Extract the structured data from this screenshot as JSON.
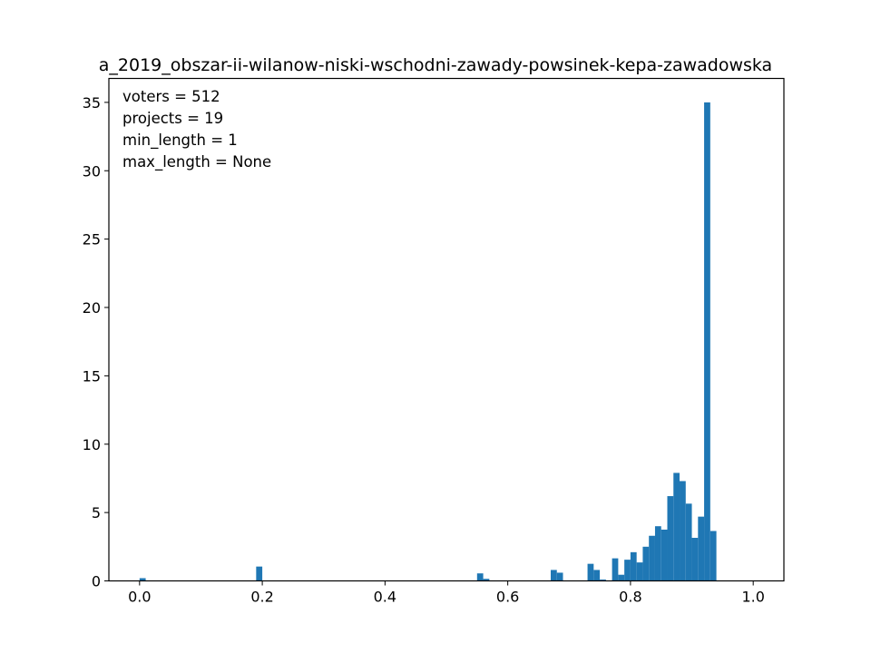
{
  "chart_data": {
    "type": "bar",
    "title": "a_2019_obszar-ii-wilanow-niski-wschodni-zawady-powsinek-kepa-zawadowska",
    "xlabel": "",
    "ylabel": "",
    "xlim": [
      -0.05,
      1.05
    ],
    "ylim": [
      0,
      36.75
    ],
    "x_ticks": [
      0.0,
      0.2,
      0.4,
      0.6,
      0.8,
      1.0
    ],
    "x_tick_labels": [
      "0.0",
      "0.2",
      "0.4",
      "0.6",
      "0.8",
      "1.0"
    ],
    "y_ticks": [
      0,
      5,
      10,
      15,
      20,
      25,
      30,
      35
    ],
    "y_tick_labels": [
      "0",
      "5",
      "10",
      "15",
      "20",
      "25",
      "30",
      "35"
    ],
    "bar_width": 0.01,
    "color": "#1f77b4",
    "grid": false,
    "annotations": [
      "voters = 512",
      "projects = 19",
      "min_length = 1",
      "max_length = None"
    ],
    "bars": [
      {
        "x": 0.005,
        "y": 0.2
      },
      {
        "x": 0.195,
        "y": 1.05
      },
      {
        "x": 0.555,
        "y": 0.55
      },
      {
        "x": 0.565,
        "y": 0.15
      },
      {
        "x": 0.675,
        "y": 0.8
      },
      {
        "x": 0.685,
        "y": 0.6
      },
      {
        "x": 0.735,
        "y": 1.25
      },
      {
        "x": 0.745,
        "y": 0.8
      },
      {
        "x": 0.755,
        "y": 0.1
      },
      {
        "x": 0.775,
        "y": 1.65
      },
      {
        "x": 0.785,
        "y": 0.45
      },
      {
        "x": 0.795,
        "y": 1.55
      },
      {
        "x": 0.805,
        "y": 2.1
      },
      {
        "x": 0.815,
        "y": 1.35
      },
      {
        "x": 0.825,
        "y": 2.5
      },
      {
        "x": 0.835,
        "y": 3.3
      },
      {
        "x": 0.845,
        "y": 4.0
      },
      {
        "x": 0.855,
        "y": 3.75
      },
      {
        "x": 0.865,
        "y": 6.2
      },
      {
        "x": 0.875,
        "y": 7.9
      },
      {
        "x": 0.885,
        "y": 7.3
      },
      {
        "x": 0.895,
        "y": 5.65
      },
      {
        "x": 0.905,
        "y": 3.15
      },
      {
        "x": 0.915,
        "y": 4.7
      },
      {
        "x": 0.925,
        "y": 35.0
      },
      {
        "x": 0.935,
        "y": 3.65
      }
    ]
  }
}
